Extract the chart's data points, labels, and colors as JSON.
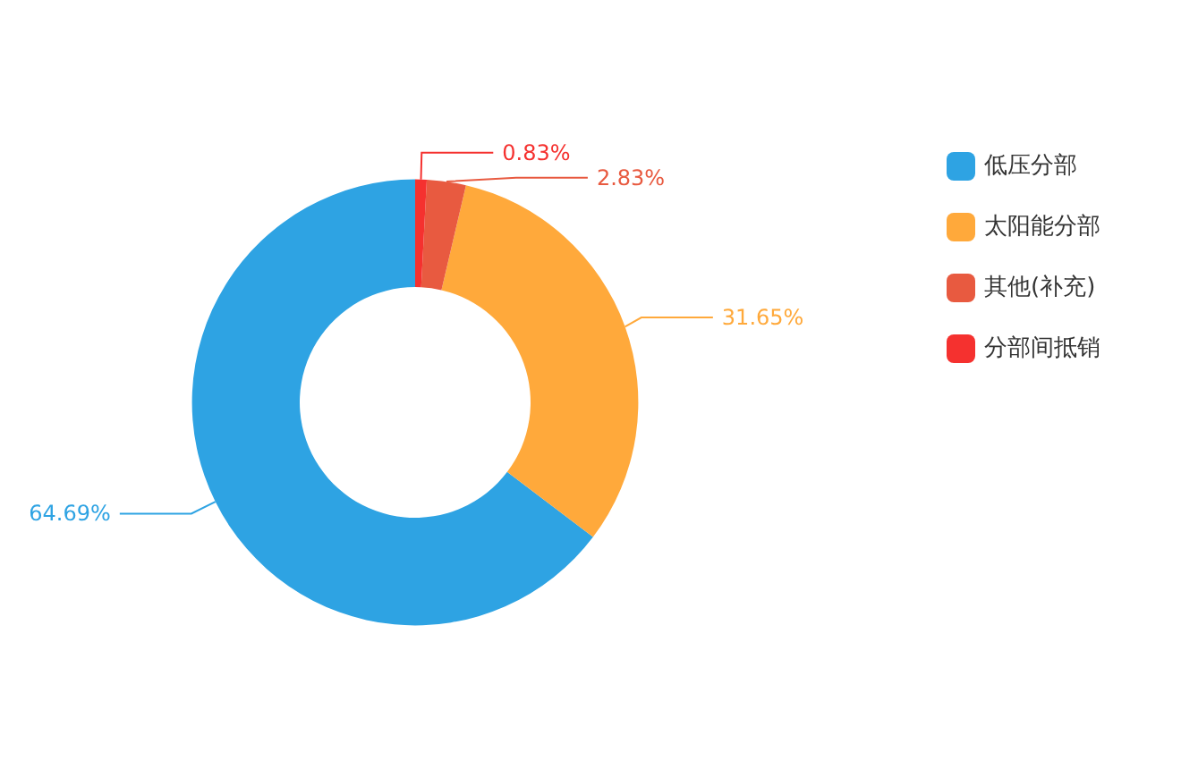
{
  "chart_data": {
    "type": "donut",
    "categories": [
      "低压分部",
      "太阳能分部",
      "其他(补充)",
      "分部间抵销"
    ],
    "values": [
      64.69,
      31.65,
      2.83,
      0.83
    ],
    "colors": [
      "#2ea3e3",
      "#ffa93b",
      "#e85a40",
      "#f5312f"
    ],
    "value_labels": [
      "64.69%",
      "31.65%",
      "2.83%",
      "0.83%"
    ],
    "legend": "right"
  }
}
